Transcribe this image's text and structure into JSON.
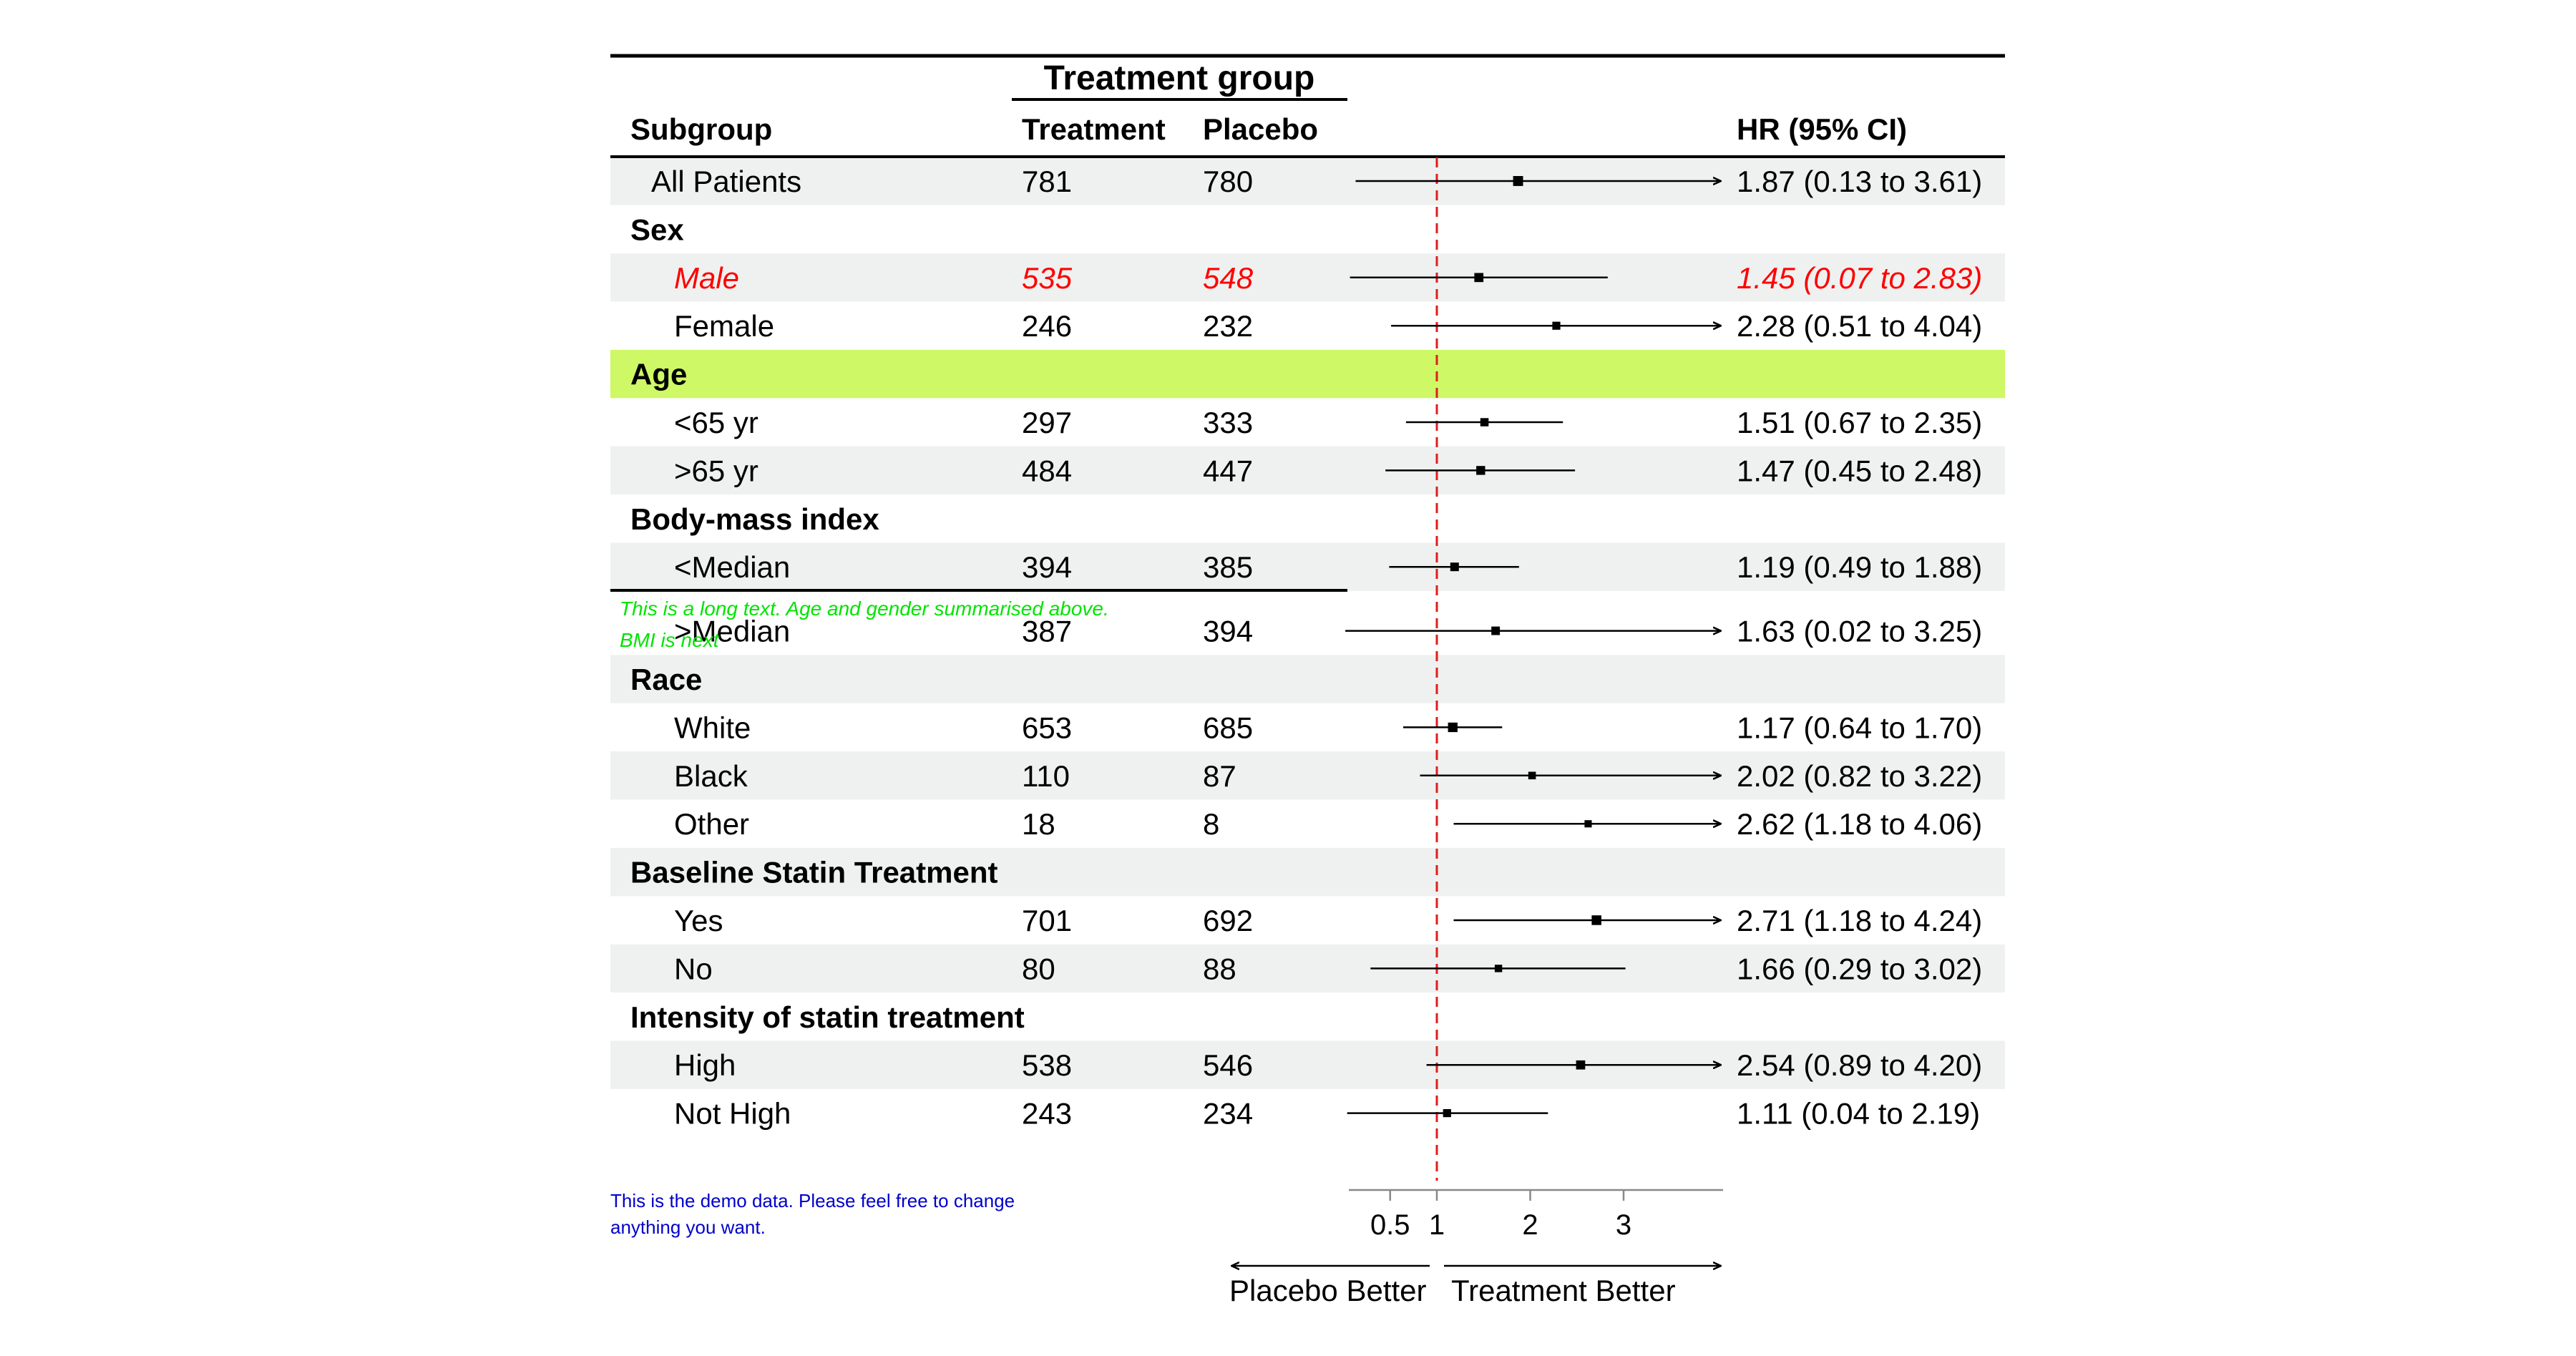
{
  "header": {
    "group_title": "Treatment group",
    "subgroup_label": "Subgroup",
    "treatment_label": "Treatment",
    "placebo_label": "Placebo",
    "hr_label": "HR (95% CI)"
  },
  "colors": {
    "stripe": "#eff1f0",
    "highlight": "#cef865",
    "emphasis": "#ff0000",
    "reference_line": "#e21b1b",
    "footnote_green": "#00e400",
    "footnote_blue": "#0000cc",
    "text": "#000000"
  },
  "footnotes": {
    "inline_line1": "This is a long text. Age and gender summarised above.",
    "inline_line2": "BMI is next",
    "bottom_line1": "This is the demo data. Please feel free to change",
    "bottom_line2": "anything you want."
  },
  "axis": {
    "direction_left": "Placebo Better",
    "direction_right": "Treatment Better"
  },
  "chart_data": {
    "type": "forest",
    "reference_value": 1,
    "xlim": [
      0,
      3
    ],
    "ticks": [
      0.5,
      1,
      2,
      3
    ],
    "tick_labels": [
      "0.5",
      "1",
      "2",
      "3"
    ],
    "rows": [
      {
        "label": "All Patients",
        "kind": "item",
        "indent": 1,
        "treatment": "781",
        "placebo": "780",
        "hr": 1.87,
        "lo": 0.13,
        "hi": 3.61,
        "ci_text": "1.87 (0.13 to 3.61)"
      },
      {
        "label": "Sex",
        "kind": "header"
      },
      {
        "label": "Male",
        "kind": "item",
        "indent": 2,
        "treatment": "535",
        "placebo": "548",
        "hr": 1.45,
        "lo": 0.07,
        "hi": 2.83,
        "ci_text": "1.45 (0.07 to 2.83)",
        "emphasis": true
      },
      {
        "label": "Female",
        "kind": "item",
        "indent": 2,
        "treatment": "246",
        "placebo": "232",
        "hr": 2.28,
        "lo": 0.51,
        "hi": 4.04,
        "ci_text": "2.28 (0.51 to 4.04)"
      },
      {
        "label": "Age",
        "kind": "header",
        "highlight": true
      },
      {
        "label": "<65 yr",
        "kind": "item",
        "indent": 2,
        "treatment": "297",
        "placebo": "333",
        "hr": 1.51,
        "lo": 0.67,
        "hi": 2.35,
        "ci_text": "1.51 (0.67 to 2.35)"
      },
      {
        "label": ">65 yr",
        "kind": "item",
        "indent": 2,
        "treatment": "484",
        "placebo": "447",
        "hr": 1.47,
        "lo": 0.45,
        "hi": 2.48,
        "ci_text": "1.47 (0.45 to 2.48)"
      },
      {
        "label": "Body-mass index",
        "kind": "header"
      },
      {
        "label": "<Median",
        "kind": "item",
        "indent": 2,
        "treatment": "394",
        "placebo": "385",
        "hr": 1.19,
        "lo": 0.49,
        "hi": 1.88,
        "ci_text": "1.19 (0.49 to 1.88)"
      },
      {
        "label": ">Median",
        "kind": "item",
        "indent": 2,
        "treatment": "387",
        "placebo": "394",
        "hr": 1.63,
        "lo": 0.02,
        "hi": 3.25,
        "ci_text": "1.63 (0.02 to 3.25)"
      },
      {
        "label": "Race",
        "kind": "header"
      },
      {
        "label": "White",
        "kind": "item",
        "indent": 2,
        "treatment": "653",
        "placebo": "685",
        "hr": 1.17,
        "lo": 0.64,
        "hi": 1.7,
        "ci_text": "1.17 (0.64 to 1.70)"
      },
      {
        "label": "Black",
        "kind": "item",
        "indent": 2,
        "treatment": "110",
        "placebo": "87",
        "hr": 2.02,
        "lo": 0.82,
        "hi": 3.22,
        "ci_text": "2.02 (0.82 to 3.22)"
      },
      {
        "label": "Other",
        "kind": "item",
        "indent": 2,
        "treatment": "18",
        "placebo": "8",
        "hr": 2.62,
        "lo": 1.18,
        "hi": 4.06,
        "ci_text": "2.62 (1.18 to 4.06)"
      },
      {
        "label": "Baseline Statin Treatment",
        "kind": "header"
      },
      {
        "label": "Yes",
        "kind": "item",
        "indent": 2,
        "treatment": "701",
        "placebo": "692",
        "hr": 2.71,
        "lo": 1.18,
        "hi": 4.24,
        "ci_text": "2.71 (1.18 to 4.24)"
      },
      {
        "label": "No",
        "kind": "item",
        "indent": 2,
        "treatment": "80",
        "placebo": "88",
        "hr": 1.66,
        "lo": 0.29,
        "hi": 3.02,
        "ci_text": "1.66 (0.29 to 3.02)"
      },
      {
        "label": "Intensity of statin treatment",
        "kind": "header"
      },
      {
        "label": "High",
        "kind": "item",
        "indent": 2,
        "treatment": "538",
        "placebo": "546",
        "hr": 2.54,
        "lo": 0.89,
        "hi": 4.2,
        "ci_text": "2.54 (0.89 to 4.20)"
      },
      {
        "label": "Not High",
        "kind": "item",
        "indent": 2,
        "treatment": "243",
        "placebo": "234",
        "hr": 1.11,
        "lo": 0.04,
        "hi": 2.19,
        "ci_text": "1.11 (0.04 to 2.19)"
      }
    ]
  }
}
